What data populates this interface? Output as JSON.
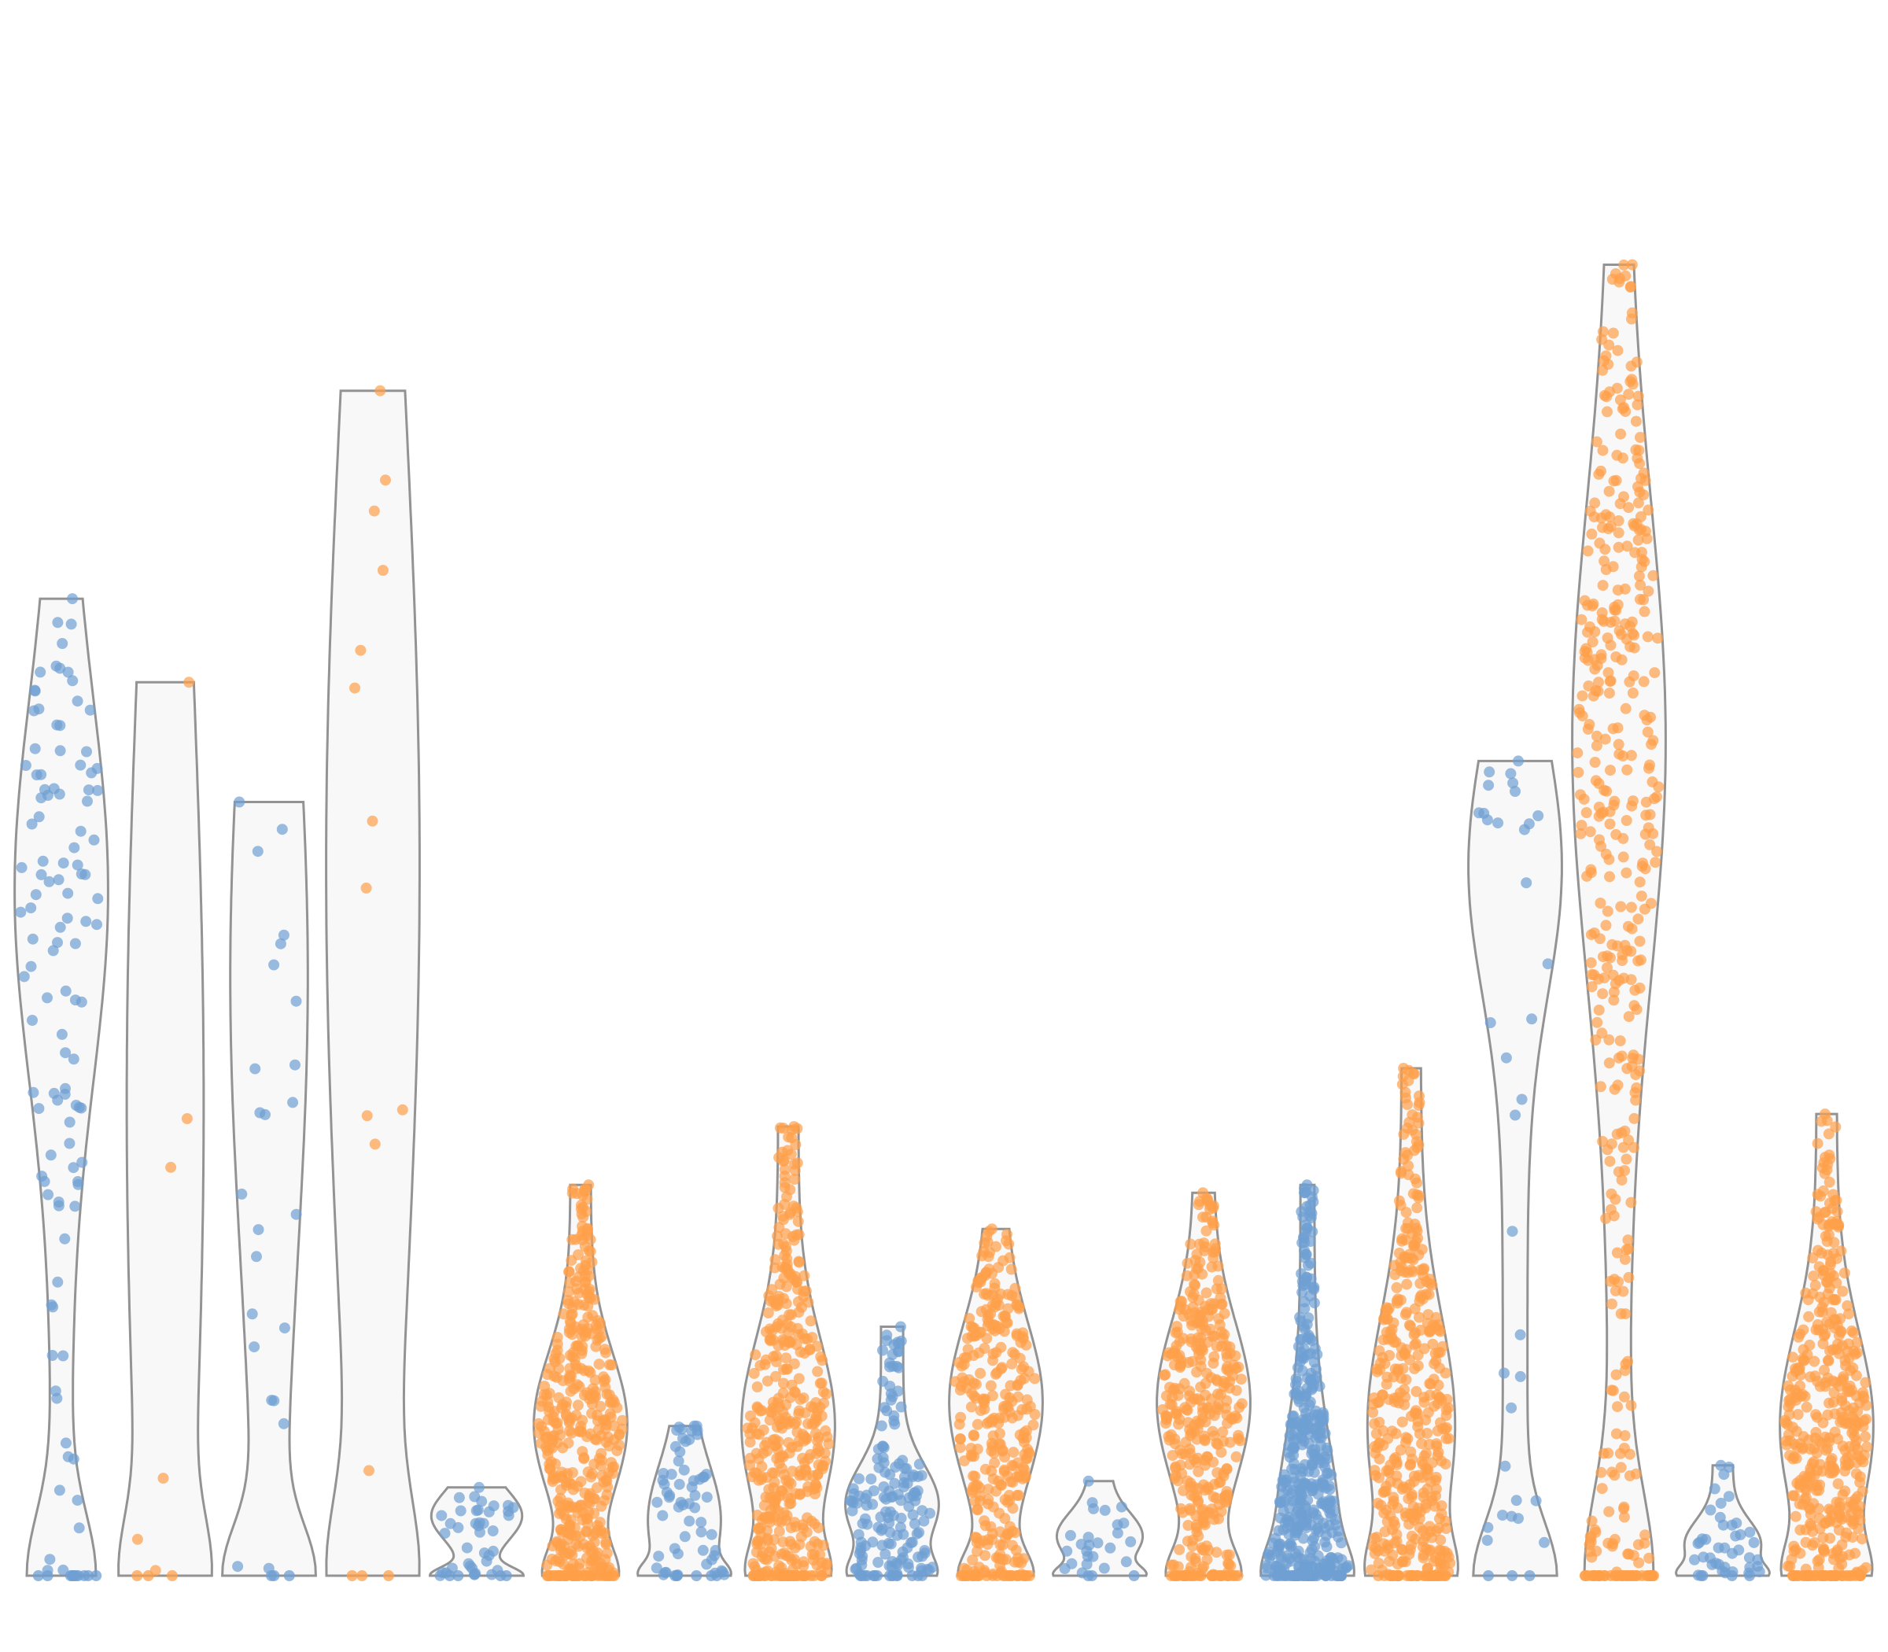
{
  "chart_data": {
    "type": "violin",
    "title": "",
    "xlabel": "",
    "ylabel": "",
    "ylim": [
      0,
      100
    ],
    "grid": false,
    "legend": "none",
    "colors": {
      "blue": "#6f9fd3",
      "orange": "#ffa04a",
      "violin_fill": "#f8f8f8",
      "violin_stroke": "#939393"
    },
    "series": [
      {
        "color": "blue",
        "max": 62.0,
        "peak": 43.5,
        "spread": 12,
        "fat": 0.9,
        "n": 110
      },
      {
        "color": "orange",
        "max": 56.7,
        "peak": 30,
        "spread": 30,
        "fat": 0.9,
        "n": 6
      },
      {
        "color": "blue",
        "max": 49.1,
        "peak": 38,
        "spread": 18,
        "fat": 0.5,
        "n": 24
      },
      {
        "color": "orange",
        "max": 75.2,
        "peak": 45,
        "spread": 30,
        "fat": 0.9,
        "n": 12
      },
      {
        "color": "blue",
        "max": 5.6,
        "peak": 3.8,
        "spread": 1.5,
        "fat": 0.6,
        "n": 40
      },
      {
        "color": "orange",
        "max": 24.8,
        "peak": 9.6,
        "spread": 4.5,
        "fat": 0.9,
        "n": 400
      },
      {
        "color": "blue",
        "max": 9.5,
        "peak": 3.5,
        "spread": 3.5,
        "fat": 0.8,
        "n": 60
      },
      {
        "color": "orange",
        "max": 28.5,
        "peak": 9.5,
        "spread": 5.5,
        "fat": 0.9,
        "n": 500
      },
      {
        "color": "blue",
        "max": 15.8,
        "peak": 4.5,
        "spread": 2.5,
        "fat": 0.8,
        "n": 150
      },
      {
        "color": "orange",
        "max": 22.0,
        "peak": 11,
        "spread": 5,
        "fat": 0.9,
        "n": 300
      },
      {
        "color": "blue",
        "max": 6.0,
        "peak": 2.5,
        "spread": 1.5,
        "fat": 0.7,
        "n": 25
      },
      {
        "color": "orange",
        "max": 24.3,
        "peak": 11,
        "spread": 5,
        "fat": 0.9,
        "n": 350
      },
      {
        "color": "blue",
        "max": 24.8,
        "peak": 2.5,
        "spread": 6,
        "fat": 0.9,
        "n": 1000
      },
      {
        "color": "orange",
        "max": 32.2,
        "peak": 9.5,
        "spread": 7,
        "fat": 0.9,
        "n": 900
      },
      {
        "color": "blue",
        "max": 51.7,
        "peak": 45,
        "spread": 8,
        "fat": 0.7,
        "n": 34
      },
      {
        "color": "orange",
        "max": 83.2,
        "peak": 53,
        "spread": 15,
        "fat": 0.9,
        "n": 2500
      },
      {
        "color": "blue",
        "max": 7.0,
        "peak": 2,
        "spread": 1.5,
        "fat": 0.7,
        "n": 40
      },
      {
        "color": "orange",
        "max": 29.3,
        "peak": 9.5,
        "spread": 6,
        "fat": 0.9,
        "n": 600
      }
    ]
  }
}
